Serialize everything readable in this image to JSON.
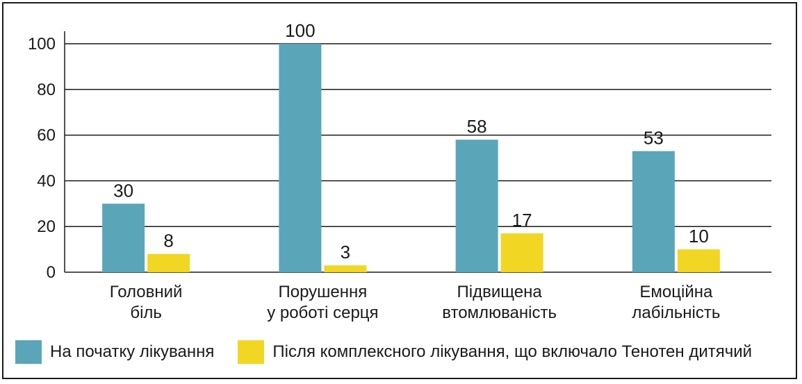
{
  "chart_data": {
    "type": "bar",
    "categories": [
      [
        "Головний",
        "біль"
      ],
      [
        "Порушення",
        "у роботі серця"
      ],
      [
        "Підвищена",
        "втомлюваність"
      ],
      [
        "Емоційна",
        "лабільність"
      ]
    ],
    "series": [
      {
        "name": "На початку лікування",
        "color": "#5ba5b9",
        "values": [
          30,
          100,
          58,
          53
        ]
      },
      {
        "name": "Після комплексного лікування, що включало Тенотен дитячий",
        "color": "#f2d624",
        "values": [
          8,
          3,
          17,
          10
        ]
      }
    ],
    "yticks": [
      0,
      20,
      40,
      60,
      80,
      100
    ],
    "ylim": [
      0,
      100
    ],
    "grid": true,
    "legend_position": "bottom-left"
  }
}
